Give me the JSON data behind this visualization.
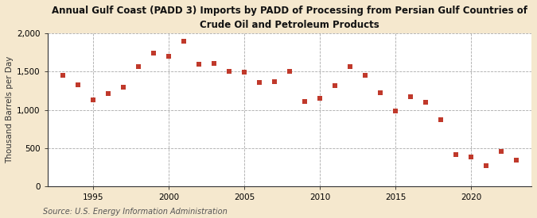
{
  "title": "Annual Gulf Coast (PADD 3) Imports by PADD of Processing from Persian Gulf Countries of\nCrude Oil and Petroleum Products",
  "ylabel": "Thousand Barrels per Day",
  "source": "Source: U.S. Energy Information Administration",
  "background_color": "#f5e8ce",
  "plot_bg_color": "#ffffff",
  "years": [
    1993,
    1994,
    1995,
    1996,
    1997,
    1998,
    1999,
    2000,
    2001,
    2002,
    2003,
    2004,
    2005,
    2006,
    2007,
    2008,
    2009,
    2010,
    2011,
    2012,
    2013,
    2014,
    2015,
    2016,
    2017,
    2018,
    2019,
    2020,
    2021,
    2022,
    2023
  ],
  "values": [
    1450,
    1325,
    1130,
    1210,
    1300,
    1560,
    1740,
    1700,
    1900,
    1600,
    1610,
    1500,
    1490,
    1360,
    1370,
    1500,
    1110,
    1150,
    1320,
    1560,
    1450,
    1220,
    990,
    1170,
    1100,
    870,
    420,
    390,
    270,
    460,
    340
  ],
  "marker_color": "#c0392b",
  "marker_size": 18,
  "ylim": [
    0,
    2000
  ],
  "yticks": [
    0,
    500,
    1000,
    1500,
    2000
  ],
  "ytick_labels": [
    "0",
    "500",
    "1,000",
    "1,500",
    "2,000"
  ],
  "xticks": [
    1995,
    2000,
    2005,
    2010,
    2015,
    2020
  ],
  "xlim": [
    1992,
    2024
  ],
  "grid_color": "#aaaaaa",
  "title_fontsize": 8.5,
  "ylabel_fontsize": 7.5,
  "tick_fontsize": 7.5,
  "source_fontsize": 7
}
